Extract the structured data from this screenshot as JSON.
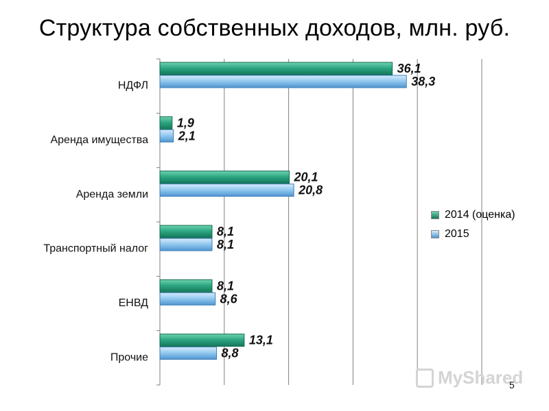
{
  "title": "Структура собственных доходов, млн. руб.",
  "page_number": "5",
  "watermark": "MyShared",
  "colors": {
    "series_2014": "#2aa37f",
    "series_2015": "#8ec6ee",
    "grid": "#7f7f7f"
  },
  "chart_data": {
    "type": "bar",
    "orientation": "horizontal",
    "categories": [
      "НДФЛ",
      "Аренда имущества",
      "Аренда земли",
      "Транспортный налог",
      "ЕНВД",
      "Прочие"
    ],
    "series": [
      {
        "name": "2014 (оценка)",
        "values": [
          36.1,
          1.9,
          20.1,
          8.1,
          8.1,
          13.1
        ],
        "labels": [
          "36,1",
          "1,9",
          "20,1",
          "8,1",
          "8,1",
          "13,1"
        ]
      },
      {
        "name": "2015",
        "values": [
          38.3,
          2.1,
          20.8,
          8.1,
          8.6,
          8.8
        ],
        "labels": [
          "38,3",
          "2,1",
          "20,8",
          "8,1",
          "8,6",
          "8,8"
        ]
      }
    ],
    "xlim": [
      0,
      50
    ],
    "grid": true,
    "legend_position": "right"
  }
}
